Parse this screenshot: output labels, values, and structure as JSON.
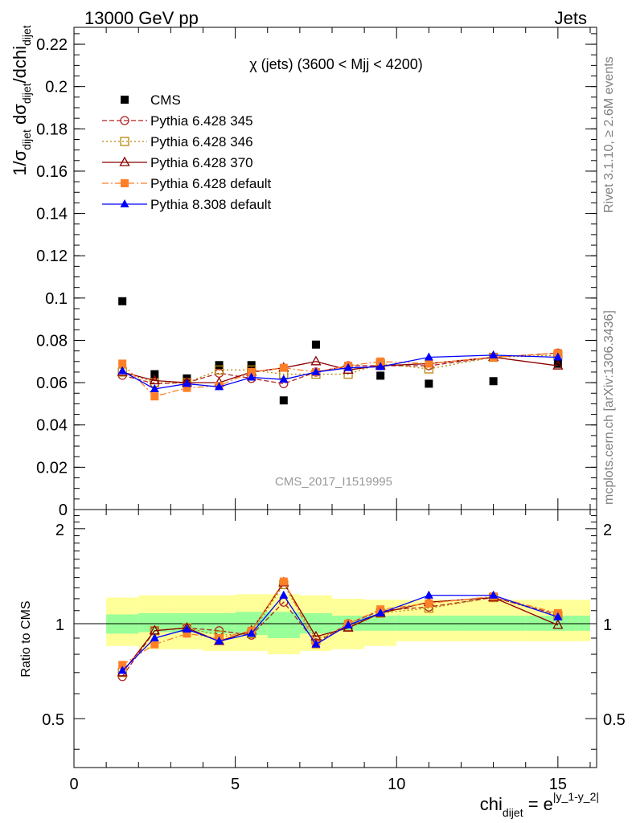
{
  "header": {
    "left": "13000 GeV pp",
    "right": "Jets"
  },
  "side_text": {
    "rivet": "Rivet 3.1.10, ≥ 2.6M events",
    "mcplots": "mcplots.cern.ch [arXiv:1306.3436]"
  },
  "analysis_id": "CMS_2017_I1519995",
  "chart_data": [
    {
      "type": "scatter",
      "title": "χ (jets) (3600 < Mjj < 4200)",
      "xlabel": "chi_dijet = e^|y_1-y_2|",
      "ylabel": "1/σ_dijet dσ_dijet/dchi_dijet",
      "xlim": [
        0,
        16.2
      ],
      "ylim": [
        0,
        0.228
      ],
      "y_ticks": [
        0,
        0.02,
        0.04,
        0.06,
        0.08,
        0.1,
        0.12,
        0.14,
        0.16,
        0.18,
        0.2,
        0.22
      ],
      "y_tick_labels": [
        "0",
        "0.02",
        "0.04",
        "0.06",
        "0.08",
        "0.1",
        "0.12",
        "0.14",
        "0.16",
        "0.18",
        "0.2",
        "0.22"
      ],
      "legend_position": "top-left",
      "x": [
        1.5,
        2.5,
        3.5,
        4.5,
        5.5,
        6.5,
        7.5,
        8.5,
        9.5,
        11.0,
        13.0,
        15.0
      ],
      "series": [
        {
          "name": "CMS",
          "color": "#000000",
          "marker": "square",
          "line": "none",
          "values": [
            0.0985,
            0.064,
            0.062,
            0.0683,
            0.0683,
            0.0516,
            0.078,
            0.0678,
            0.0633,
            0.0595,
            0.0607,
            0.0689
          ]
        },
        {
          "name": "Pythia 6.428 345",
          "color": "#b22222",
          "marker": "open-circle",
          "line": "dashed",
          "values": [
            0.0635,
            0.0595,
            0.06,
            0.0645,
            0.062,
            0.0595,
            0.065,
            0.068,
            0.068,
            0.068,
            0.072,
            0.074
          ]
        },
        {
          "name": "Pythia 6.428 346",
          "color": "#b8860b",
          "marker": "open-square",
          "line": "dotted",
          "values": [
            0.065,
            0.06,
            0.06,
            0.066,
            0.066,
            0.064,
            0.064,
            0.064,
            0.069,
            0.0665,
            0.072,
            0.073
          ]
        },
        {
          "name": "Pythia 6.428 370",
          "color": "#8b0000",
          "marker": "open-triangle",
          "line": "solid",
          "values": [
            0.065,
            0.061,
            0.06,
            0.06,
            0.065,
            0.067,
            0.07,
            0.066,
            0.068,
            0.069,
            0.072,
            0.068
          ]
        },
        {
          "name": "Pythia 6.428 default",
          "color": "#ff7f27",
          "marker": "filled-square",
          "line": "dashdot",
          "values": [
            0.069,
            0.0535,
            0.0575,
            0.0585,
            0.065,
            0.067,
            0.065,
            0.068,
            0.07,
            0.069,
            0.072,
            0.074
          ]
        },
        {
          "name": "Pythia 8.308 default",
          "color": "#0000ff",
          "marker": "filled-triangle",
          "line": "solid",
          "values": [
            0.0655,
            0.057,
            0.0595,
            0.058,
            0.0625,
            0.0615,
            0.065,
            0.067,
            0.0675,
            0.072,
            0.073,
            0.072
          ]
        }
      ]
    },
    {
      "type": "scatter",
      "xlabel": "chi_dijet = e^|y_1-y_2|",
      "ylabel": "Ratio to CMS",
      "xlim": [
        0,
        16.2
      ],
      "ylim": [
        0.35,
        2.3
      ],
      "y_scale": "log",
      "y_ticks": [
        0.5,
        1,
        2
      ],
      "y_tick_labels": [
        "0.5",
        "1",
        "2"
      ],
      "x_ticks": [
        0,
        5,
        10,
        15
      ],
      "x_tick_labels": [
        "0",
        "5",
        "10",
        "15"
      ],
      "bin_edges": [
        1,
        2,
        3,
        4,
        5,
        6,
        7,
        8,
        9,
        10,
        12,
        14,
        16
      ],
      "band_inner": [
        [
          0.93,
          1.07
        ],
        [
          0.94,
          1.08
        ],
        [
          0.94,
          1.08
        ],
        [
          0.93,
          1.08
        ],
        [
          0.92,
          1.09
        ],
        [
          0.9,
          1.09
        ],
        [
          0.93,
          1.08
        ],
        [
          0.95,
          1.06
        ],
        [
          0.95,
          1.06
        ],
        [
          0.95,
          1.06
        ],
        [
          0.95,
          1.06
        ],
        [
          0.95,
          1.06
        ]
      ],
      "band_outer": [
        [
          0.85,
          1.21
        ],
        [
          0.83,
          1.23
        ],
        [
          0.83,
          1.23
        ],
        [
          0.82,
          1.23
        ],
        [
          0.82,
          1.24
        ],
        [
          0.8,
          1.24
        ],
        [
          0.82,
          1.23
        ],
        [
          0.83,
          1.2
        ],
        [
          0.85,
          1.19
        ],
        [
          0.88,
          1.19
        ],
        [
          0.88,
          1.19
        ],
        [
          0.88,
          1.19
        ]
      ],
      "band_colors": {
        "inner": "#99ff99",
        "outer": "#ffff99"
      },
      "x": [
        1.5,
        2.5,
        3.5,
        4.5,
        5.5,
        6.5,
        7.5,
        8.5,
        9.5,
        11.0,
        13.0,
        15.0
      ],
      "series": [
        {
          "name": "Pythia 6.428 345",
          "color": "#b22222",
          "marker": "open-circle",
          "line": "dashed",
          "values": [
            0.68,
            0.95,
            0.97,
            0.95,
            0.92,
            1.17,
            0.87,
            1.0,
            1.1,
            1.13,
            1.21,
            1.07
          ]
        },
        {
          "name": "Pythia 6.428 346",
          "color": "#b8860b",
          "marker": "open-square",
          "line": "dotted",
          "values": [
            0.7,
            0.95,
            0.97,
            0.92,
            0.93,
            1.33,
            0.89,
            0.98,
            1.08,
            1.12,
            1.21,
            1.06
          ]
        },
        {
          "name": "Pythia 6.428 370",
          "color": "#8b0000",
          "marker": "open-triangle",
          "line": "solid",
          "values": [
            0.7,
            0.95,
            0.97,
            0.88,
            0.95,
            1.35,
            0.91,
            0.97,
            1.08,
            1.17,
            1.21,
            0.99
          ]
        },
        {
          "name": "Pythia 6.428 default",
          "color": "#ff7f27",
          "marker": "filled-square",
          "line": "dashdot",
          "values": [
            0.74,
            0.86,
            0.93,
            0.9,
            0.95,
            1.36,
            0.86,
            1.0,
            1.11,
            1.16,
            1.22,
            1.08
          ]
        },
        {
          "name": "Pythia 8.308 default",
          "color": "#0000ff",
          "marker": "filled-triangle",
          "line": "solid",
          "values": [
            0.71,
            0.9,
            0.96,
            0.88,
            0.93,
            1.23,
            0.86,
            0.99,
            1.08,
            1.23,
            1.23,
            1.05
          ]
        }
      ]
    }
  ]
}
